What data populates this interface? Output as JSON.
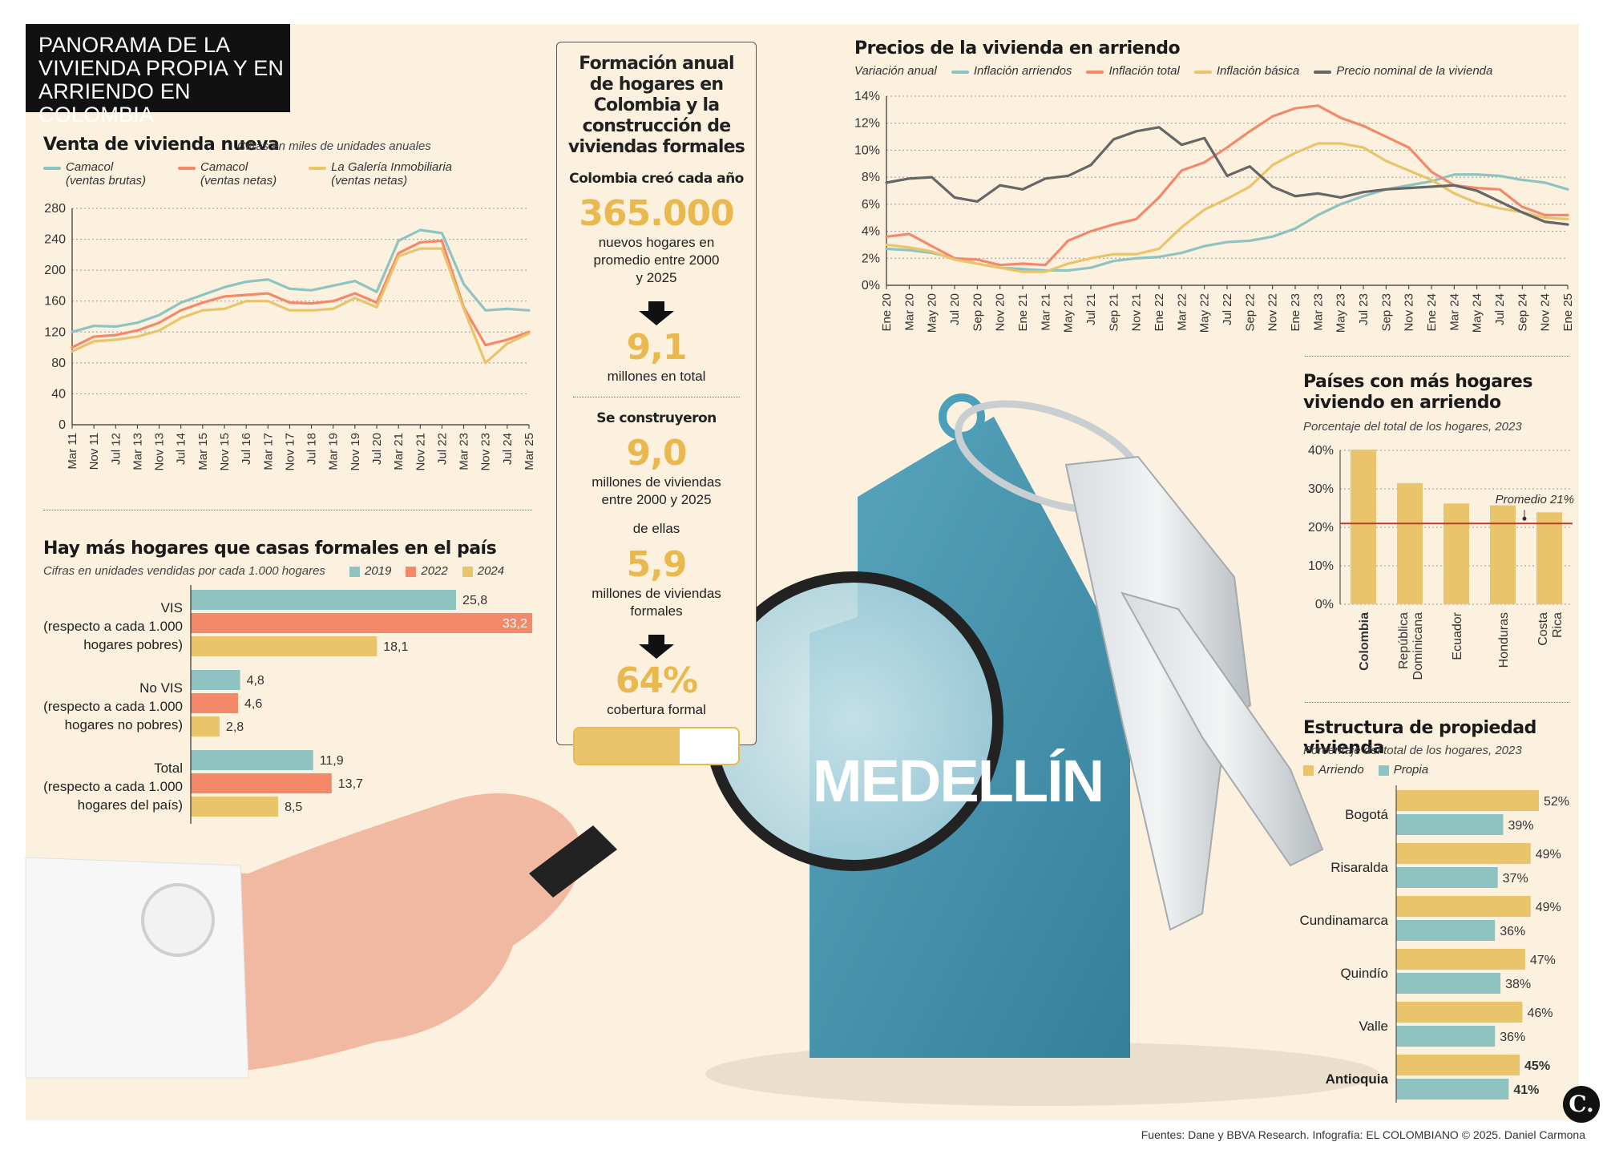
{
  "header": {
    "title": "PANORAMA DE LA VIVIENDA PROPIA Y EN ARRIENDO EN COLOMBIA"
  },
  "colors": {
    "teal": "#8ec3c1",
    "coral": "#f4896a",
    "gold": "#e9c46a",
    "gray": "#666666",
    "red": "#c0392b",
    "panel": "#fbf1de"
  },
  "venta": {
    "title": "Venta de vivienda nueva",
    "subtitle": "Cifras en miles de unidades anuales",
    "legend": [
      {
        "name": "Camacol",
        "detail": "(ventas brutas)",
        "color": "#8ec3c1"
      },
      {
        "name": "Camacol",
        "detail": "(ventas netas)",
        "color": "#f4896a"
      },
      {
        "name": "La Galería Inmobiliaria",
        "detail": "(ventas netas)",
        "color": "#e9c46a"
      }
    ]
  },
  "hogares": {
    "title": "Hay más hogares que casas formales en el país",
    "subtitle": "Cifras en unidades vendidas por cada 1.000 hogares",
    "legend": [
      {
        "name": "2019",
        "color": "#8ec3c1"
      },
      {
        "name": "2022",
        "color": "#f4896a"
      },
      {
        "name": "2024",
        "color": "#e9c46a"
      }
    ]
  },
  "formacion": {
    "title": "Formación anual de hogares en Colombia y la construcción de viviendas formales",
    "created_label": "Colombia creó cada año",
    "created_value": "365.000",
    "created_desc": "nuevos hogares en promedio entre 2000 y 2025",
    "total_value": "9,1",
    "total_desc": "millones en total",
    "built_label": "Se construyeron",
    "built_value": "9,0",
    "built_desc": "millones de viviendas entre 2000 y 2025",
    "of_them": "de ellas",
    "formal_value": "5,9",
    "formal_desc": "millones de viviendas formales",
    "coverage_value": "64%",
    "coverage_desc": "cobertura formal",
    "coverage_fraction": 0.64
  },
  "precios": {
    "title": "Precios de la vivienda en arriendo",
    "subtitle": "Variación anual",
    "legend": [
      {
        "name": "Inflación arriendos",
        "color": "#8ec3c1"
      },
      {
        "name": "Inflación total",
        "color": "#f4896a"
      },
      {
        "name": "Inflación básica",
        "color": "#e9c46a"
      },
      {
        "name": "Precio nominal de la vivienda",
        "color": "#666666"
      }
    ]
  },
  "paises": {
    "title": "Países con más hogares viviendo en arriendo",
    "subtitle": "Porcentaje del total de los hogares, 2023",
    "promedio_label": "Promedio 21%"
  },
  "estructura": {
    "title": "Estructura de propiedad vivienda",
    "subtitle": "Porcentaje del total de los hogares, 2023",
    "legend": [
      {
        "name": "Arriendo",
        "color": "#e9c46a"
      },
      {
        "name": "Propia",
        "color": "#8ec3c1"
      }
    ]
  },
  "illustration": {
    "city_label": "MEDELLÍN"
  },
  "footer": {
    "source": "Fuentes: Dane y BBVA Research. Infografía: EL COLOMBIANO © 2025. Daniel Carmona",
    "logo": "C."
  },
  "chart_data": [
    {
      "id": "venta",
      "type": "line",
      "title": "Venta de vivienda nueva",
      "x_ticks": [
        "Mar 11",
        "Nov 11",
        "Jul 12",
        "Mar 13",
        "Nov 13",
        "Jul 14",
        "Mar 15",
        "Nov 15",
        "Jul 16",
        "Mar 17",
        "Nov 17",
        "Jul 18",
        "Mar 19",
        "Nov 19",
        "Jul 20",
        "Mar 21",
        "Nov 21",
        "Jul 22",
        "Mar 23",
        "Nov 23",
        "Jul 24",
        "Mar 25"
      ],
      "ylim": [
        0,
        280
      ],
      "y_ticks": [
        0,
        40,
        80,
        120,
        160,
        200,
        240,
        280
      ],
      "grid": true,
      "series": [
        {
          "name": "Camacol (ventas brutas)",
          "values": [
            120,
            128,
            127,
            132,
            142,
            158,
            168,
            178,
            185,
            188,
            176,
            174,
            180,
            186,
            172,
            238,
            252,
            248,
            182,
            148,
            150,
            148
          ]
        },
        {
          "name": "Camacol (ventas netas)",
          "values": [
            100,
            114,
            116,
            122,
            132,
            148,
            158,
            166,
            168,
            170,
            158,
            157,
            160,
            170,
            158,
            222,
            236,
            238,
            152,
            103,
            110,
            120
          ]
        },
        {
          "name": "La Galería Inmobiliaria (ventas netas)",
          "values": [
            95,
            108,
            110,
            114,
            122,
            138,
            148,
            150,
            160,
            160,
            148,
            148,
            150,
            164,
            152,
            218,
            228,
            228,
            150,
            80,
            105,
            118
          ]
        }
      ]
    },
    {
      "id": "hogares",
      "type": "bar",
      "orientation": "horizontal",
      "title": "Hay más hogares que casas formales en el país",
      "categories": [
        "VIS\n(respecto a cada 1.000\nhogares pobres)",
        "No VIS\n(respecto a cada 1.000\nhogares no pobres)",
        "Total\n(respecto a cada 1.000\nhogares del país)"
      ],
      "series": [
        {
          "name": "2019",
          "values": [
            25.8,
            4.8,
            11.9
          ]
        },
        {
          "name": "2022",
          "values": [
            33.2,
            4.6,
            13.7
          ]
        },
        {
          "name": "2024",
          "values": [
            18.1,
            2.8,
            8.5
          ]
        }
      ],
      "value_labels": [
        [
          "25,8",
          "4,8",
          "11,9"
        ],
        [
          "33,2",
          "4,6",
          "13,7"
        ],
        [
          "18,1",
          "2,8",
          "8,5"
        ]
      ],
      "xlim": [
        0,
        33.2
      ]
    },
    {
      "id": "precios",
      "type": "line",
      "title": "Precios de la vivienda en arriendo",
      "x_ticks": [
        "Ene 20",
        "Mar 20",
        "May 20",
        "Jul 20",
        "Sep 20",
        "Nov 20",
        "Ene 21",
        "Mar 21",
        "May 21",
        "Jul 21",
        "Sep 21",
        "Nov 21",
        "Ene 22",
        "Mar 22",
        "May 22",
        "Jul 22",
        "Sep 22",
        "Nov 22",
        "Ene 23",
        "Mar 23",
        "May 23",
        "Jul 23",
        "Sep 23",
        "Nov 23",
        "Ene 24",
        "Mar 24",
        "May 24",
        "Jul 24",
        "Sep 24",
        "Nov 24",
        "Ene 25"
      ],
      "ylim": [
        0,
        14
      ],
      "y_ticks": [
        "0%",
        "2%",
        "4%",
        "6%",
        "8%",
        "10%",
        "12%",
        "14%"
      ],
      "grid": true,
      "series": [
        {
          "name": "Inflación arriendos",
          "values": [
            2.7,
            2.6,
            2.4,
            2.0,
            1.6,
            1.3,
            1.2,
            1.1,
            1.1,
            1.3,
            1.8,
            2.0,
            2.1,
            2.4,
            2.9,
            3.2,
            3.3,
            3.6,
            4.2,
            5.2,
            6.0,
            6.6,
            7.1,
            7.4,
            7.7,
            8.2,
            8.2,
            8.1,
            7.8,
            7.6,
            7.1
          ]
        },
        {
          "name": "Inflación total",
          "values": [
            3.6,
            3.8,
            2.9,
            2.0,
            1.9,
            1.5,
            1.6,
            1.5,
            3.3,
            4.0,
            4.5,
            4.9,
            6.5,
            8.5,
            9.1,
            10.2,
            11.4,
            12.5,
            13.1,
            13.3,
            12.4,
            11.8,
            11.0,
            10.2,
            8.4,
            7.4,
            7.2,
            7.1,
            5.8,
            5.2,
            5.2
          ]
        },
        {
          "name": "Inflación básica",
          "values": [
            3.0,
            2.8,
            2.5,
            1.9,
            1.6,
            1.3,
            1.0,
            1.0,
            1.6,
            2.0,
            2.3,
            2.3,
            2.7,
            4.3,
            5.6,
            6.4,
            7.3,
            8.9,
            9.8,
            10.5,
            10.5,
            10.2,
            9.2,
            8.5,
            7.8,
            6.8,
            6.1,
            5.7,
            5.4,
            5.0,
            4.9
          ]
        },
        {
          "name": "Precio nominal de la vivienda",
          "values": [
            7.6,
            7.9,
            8.0,
            6.5,
            6.2,
            7.4,
            7.1,
            7.9,
            8.1,
            8.9,
            10.8,
            11.4,
            11.7,
            10.4,
            10.9,
            8.1,
            8.8,
            7.3,
            6.6,
            6.8,
            6.5,
            6.9,
            7.1,
            7.2,
            7.3,
            7.4,
            7.0,
            6.2,
            5.4,
            4.7,
            4.5
          ]
        }
      ]
    },
    {
      "id": "paises",
      "type": "bar",
      "title": "Países con más hogares viviendo en arriendo",
      "categories": [
        "Colombia",
        "República Dominicana",
        "Ecuador",
        "Honduras",
        "Costa Rica"
      ],
      "values": [
        40.2,
        31.5,
        26.2,
        25.7,
        23.9
      ],
      "ylim": [
        0,
        40
      ],
      "y_ticks": [
        "0%",
        "10%",
        "20%",
        "30%",
        "40%"
      ],
      "reference_line": {
        "label": "Promedio 21%",
        "value": 21
      }
    },
    {
      "id": "estructura",
      "type": "bar",
      "orientation": "horizontal",
      "title": "Estructura de propiedad vivienda",
      "categories": [
        "Bogotá",
        "Risaralda",
        "Cundinamarca",
        "Quindío",
        "Valle",
        "Antioquia"
      ],
      "series": [
        {
          "name": "Arriendo",
          "values": [
            52,
            49,
            49,
            47,
            46,
            45
          ]
        },
        {
          "name": "Propia",
          "values": [
            39,
            37,
            36,
            38,
            36,
            41
          ]
        }
      ],
      "value_labels": [
        [
          "52%",
          "49%",
          "49%",
          "47%",
          "46%",
          "45%"
        ],
        [
          "39%",
          "37%",
          "36%",
          "38%",
          "36%",
          "41%"
        ]
      ]
    }
  ]
}
